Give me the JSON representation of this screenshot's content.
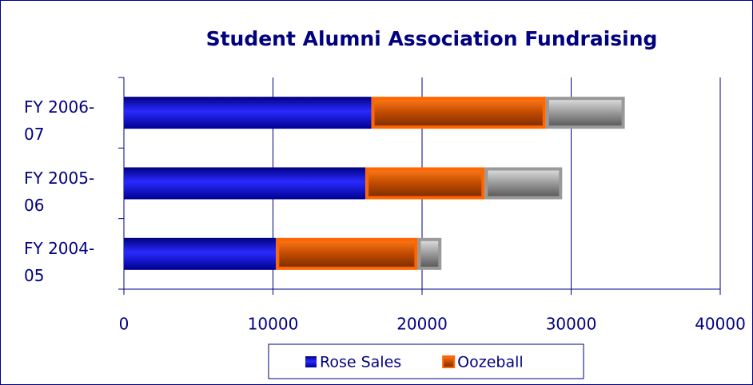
{
  "chart_data": {
    "type": "stacked-bar-horizontal",
    "title": "Student Alumni Association Fundraising",
    "categories": [
      "FY 2004-05",
      "FY 2005-06",
      "FY 2006-07"
    ],
    "series": [
      {
        "name": "Rose Sales",
        "color": "#0000cc",
        "values": [
          10200,
          16200,
          16600
        ]
      },
      {
        "name": "Oozeball",
        "color": "#ff6600",
        "values": [
          9500,
          8000,
          11700
        ]
      },
      {
        "color": "#999999",
        "values": [
          1600,
          5200,
          5300
        ]
      }
    ],
    "xlim": [
      0,
      40000
    ],
    "xticks": [
      0,
      10000,
      20000,
      30000,
      40000
    ],
    "grid": true,
    "legend": "bottom"
  }
}
